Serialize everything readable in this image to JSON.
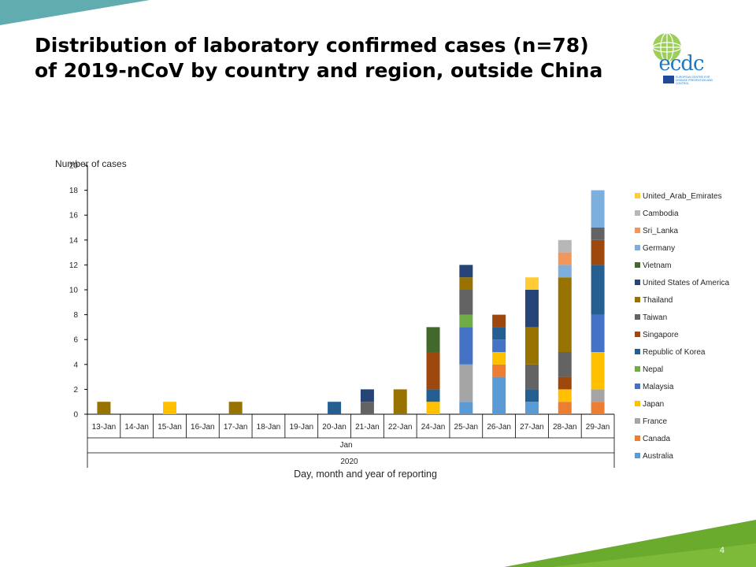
{
  "slide": {
    "title_line1": "Distribution of laboratory confirmed cases (n=78)",
    "title_line2": "of 2019-nCoV by country and region, outside China",
    "page_number": "4",
    "logo_text": "ecdc",
    "logo_subtext": "EUROPEAN CENTRE FOR DISEASE PREVENTION AND CONTROL"
  },
  "chart_data": {
    "type": "bar",
    "stacked": true,
    "ylabel": "Number of cases",
    "xlabel": "Day, month and year of reporting",
    "month_label": "Jan",
    "year_label": "2020",
    "ylim": [
      0,
      20
    ],
    "yticks": [
      0,
      2,
      4,
      6,
      8,
      10,
      12,
      14,
      16,
      18,
      20
    ],
    "categories": [
      "13-Jan",
      "14-Jan",
      "15-Jan",
      "16-Jan",
      "17-Jan",
      "18-Jan",
      "19-Jan",
      "20-Jan",
      "21-Jan",
      "22-Jan",
      "24-Jan",
      "25-Jan",
      "26-Jan",
      "27-Jan",
      "28-Jan",
      "29-Jan"
    ],
    "legend_position": "right",
    "series": [
      {
        "name": "Australia",
        "color": "#5b9bd5",
        "values": [
          0,
          0,
          0,
          0,
          0,
          0,
          0,
          0,
          0,
          0,
          0,
          1,
          3,
          1,
          0,
          0
        ]
      },
      {
        "name": "Canada",
        "color": "#ed7d31",
        "values": [
          0,
          0,
          0,
          0,
          0,
          0,
          0,
          0,
          0,
          0,
          0,
          0,
          1,
          0,
          1,
          1
        ]
      },
      {
        "name": "France",
        "color": "#a5a5a5",
        "values": [
          0,
          0,
          0,
          0,
          0,
          0,
          0,
          0,
          0,
          0,
          0,
          3,
          0,
          0,
          0,
          1
        ]
      },
      {
        "name": "Japan",
        "color": "#ffc000",
        "values": [
          0,
          0,
          1,
          0,
          0,
          0,
          0,
          0,
          0,
          0,
          1,
          0,
          1,
          0,
          1,
          3
        ]
      },
      {
        "name": "Malaysia",
        "color": "#4472c4",
        "values": [
          0,
          0,
          0,
          0,
          0,
          0,
          0,
          0,
          0,
          0,
          0,
          3,
          1,
          0,
          0,
          3
        ]
      },
      {
        "name": "Nepal",
        "color": "#70ad47",
        "values": [
          0,
          0,
          0,
          0,
          0,
          0,
          0,
          0,
          0,
          0,
          0,
          1,
          0,
          0,
          0,
          0
        ]
      },
      {
        "name": "Republic of Korea",
        "color": "#255e91",
        "values": [
          0,
          0,
          0,
          0,
          0,
          0,
          0,
          1,
          0,
          0,
          1,
          0,
          1,
          1,
          0,
          4
        ]
      },
      {
        "name": "Singapore",
        "color": "#9e480e",
        "values": [
          0,
          0,
          0,
          0,
          0,
          0,
          0,
          0,
          0,
          0,
          3,
          0,
          1,
          0,
          1,
          2
        ]
      },
      {
        "name": "Taiwan",
        "color": "#636363",
        "values": [
          0,
          0,
          0,
          0,
          0,
          0,
          0,
          0,
          1,
          0,
          0,
          2,
          0,
          2,
          2,
          1
        ]
      },
      {
        "name": "Thailand",
        "color": "#997300",
        "values": [
          1,
          0,
          0,
          0,
          1,
          0,
          0,
          0,
          0,
          2,
          0,
          1,
          0,
          3,
          6,
          0
        ]
      },
      {
        "name": "United States of America",
        "color": "#264478",
        "values": [
          0,
          0,
          0,
          0,
          0,
          0,
          0,
          0,
          1,
          0,
          0,
          1,
          0,
          3,
          0,
          0
        ]
      },
      {
        "name": "Vietnam",
        "color": "#43682b",
        "values": [
          0,
          0,
          0,
          0,
          0,
          0,
          0,
          0,
          0,
          0,
          2,
          0,
          0,
          0,
          0,
          0
        ]
      },
      {
        "name": "Germany",
        "color": "#7cafdd",
        "values": [
          0,
          0,
          0,
          0,
          0,
          0,
          0,
          0,
          0,
          0,
          0,
          0,
          0,
          0,
          1,
          3
        ]
      },
      {
        "name": "Sri_Lanka",
        "color": "#f1975a",
        "values": [
          0,
          0,
          0,
          0,
          0,
          0,
          0,
          0,
          0,
          0,
          0,
          0,
          0,
          0,
          1,
          0
        ]
      },
      {
        "name": "Cambodia",
        "color": "#b7b7b7",
        "values": [
          0,
          0,
          0,
          0,
          0,
          0,
          0,
          0,
          0,
          0,
          0,
          0,
          0,
          0,
          1,
          0
        ]
      },
      {
        "name": "United_Arab_Emirates",
        "color": "#ffcd33",
        "values": [
          0,
          0,
          0,
          0,
          0,
          0,
          0,
          0,
          0,
          0,
          0,
          0,
          0,
          1,
          0,
          0
        ]
      }
    ]
  },
  "colors": {
    "corner_teal": "#4fa3a5",
    "corner_green": "#6aab2e",
    "logo_blue": "#1f78c1"
  }
}
